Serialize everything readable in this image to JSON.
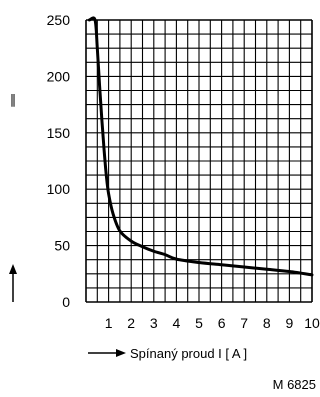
{
  "chart_data": {
    "type": "line",
    "title": "",
    "xlabel": "Spínaný proud I [ A ]",
    "ylabel": "",
    "y_axis_symbol": "∥",
    "figure_code": "M 6825",
    "xlim": [
      0,
      10
    ],
    "ylim": [
      0,
      250
    ],
    "grid": true,
    "x_ticks": [
      1,
      2,
      3,
      4,
      5,
      6,
      7,
      8,
      9,
      10
    ],
    "y_ticks": [
      0,
      50,
      100,
      150,
      200,
      250
    ],
    "series": [
      {
        "x": [
          0.15,
          0.4,
          0.5,
          0.6,
          0.7,
          0.8,
          0.9,
          1.0,
          1.2,
          1.5,
          2.0,
          2.5,
          3.0,
          3.5,
          4.0,
          5.0,
          6.0,
          7.0,
          8.0,
          9.0,
          10.0
        ],
        "values": [
          250,
          250,
          225,
          192,
          162,
          135,
          112,
          96,
          78,
          63,
          54,
          49,
          45,
          42,
          38,
          35,
          33,
          31,
          29,
          27,
          24
        ]
      }
    ]
  }
}
